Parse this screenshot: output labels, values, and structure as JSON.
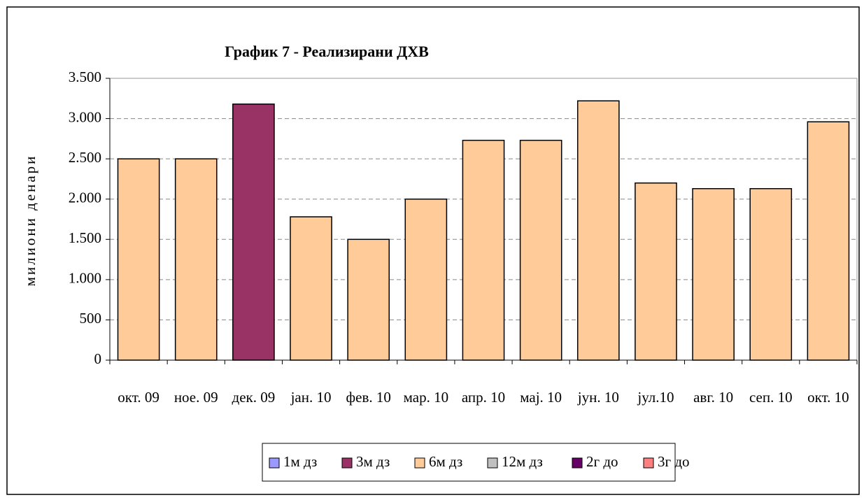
{
  "chart_data": {
    "type": "stacked_bar",
    "title": "График 7 - Реализирани ДХВ",
    "y_label": "милиони денари",
    "categories": [
      "окт. 09",
      "ное. 09",
      "дек. 09",
      "јан. 10",
      "фев. 10",
      "мар. 10",
      "апр. 10",
      "мај. 10",
      "јун. 10",
      "јул.10",
      "авг. 10",
      "сеп. 10",
      "окт. 10"
    ],
    "series": [
      {
        "name": "1м дз",
        "color": "#9999ff",
        "values": [
          null,
          null,
          null,
          null,
          null,
          null,
          null,
          null,
          null,
          null,
          null,
          null,
          null
        ]
      },
      {
        "name": "3м дз",
        "color": "#993366",
        "values": [
          null,
          null,
          3180,
          null,
          null,
          null,
          null,
          null,
          null,
          null,
          null,
          null,
          null
        ]
      },
      {
        "name": "6м дз",
        "color": "#ffcc99",
        "values": [
          2500,
          2500,
          null,
          1780,
          1500,
          2000,
          2730,
          2730,
          3220,
          2200,
          2130,
          2130,
          2960
        ]
      },
      {
        "name": "12м дз",
        "color": "#c0c0c0",
        "values": [
          null,
          null,
          null,
          null,
          null,
          null,
          null,
          null,
          null,
          null,
          null,
          null,
          null
        ]
      },
      {
        "name": "2г до",
        "color": "#660066",
        "values": [
          null,
          null,
          null,
          null,
          null,
          null,
          null,
          null,
          null,
          null,
          null,
          null,
          null
        ]
      },
      {
        "name": "3г до",
        "color": "#ff8080",
        "values": [
          null,
          null,
          null,
          null,
          null,
          null,
          null,
          null,
          null,
          null,
          null,
          null,
          null
        ]
      }
    ],
    "ylim": [
      0,
      3500
    ],
    "yticks": [
      0,
      500,
      {
        "value": 1000,
        "label": "1.000"
      },
      {
        "value": 1500,
        "label": "1.500"
      },
      {
        "value": 2000,
        "label": "2.000"
      },
      {
        "value": 2500,
        "label": "2.500"
      },
      {
        "value": 3000,
        "label": "3.000"
      },
      {
        "value": 3500,
        "label": "3.500"
      }
    ],
    "grid": true,
    "legend": "bottom"
  }
}
